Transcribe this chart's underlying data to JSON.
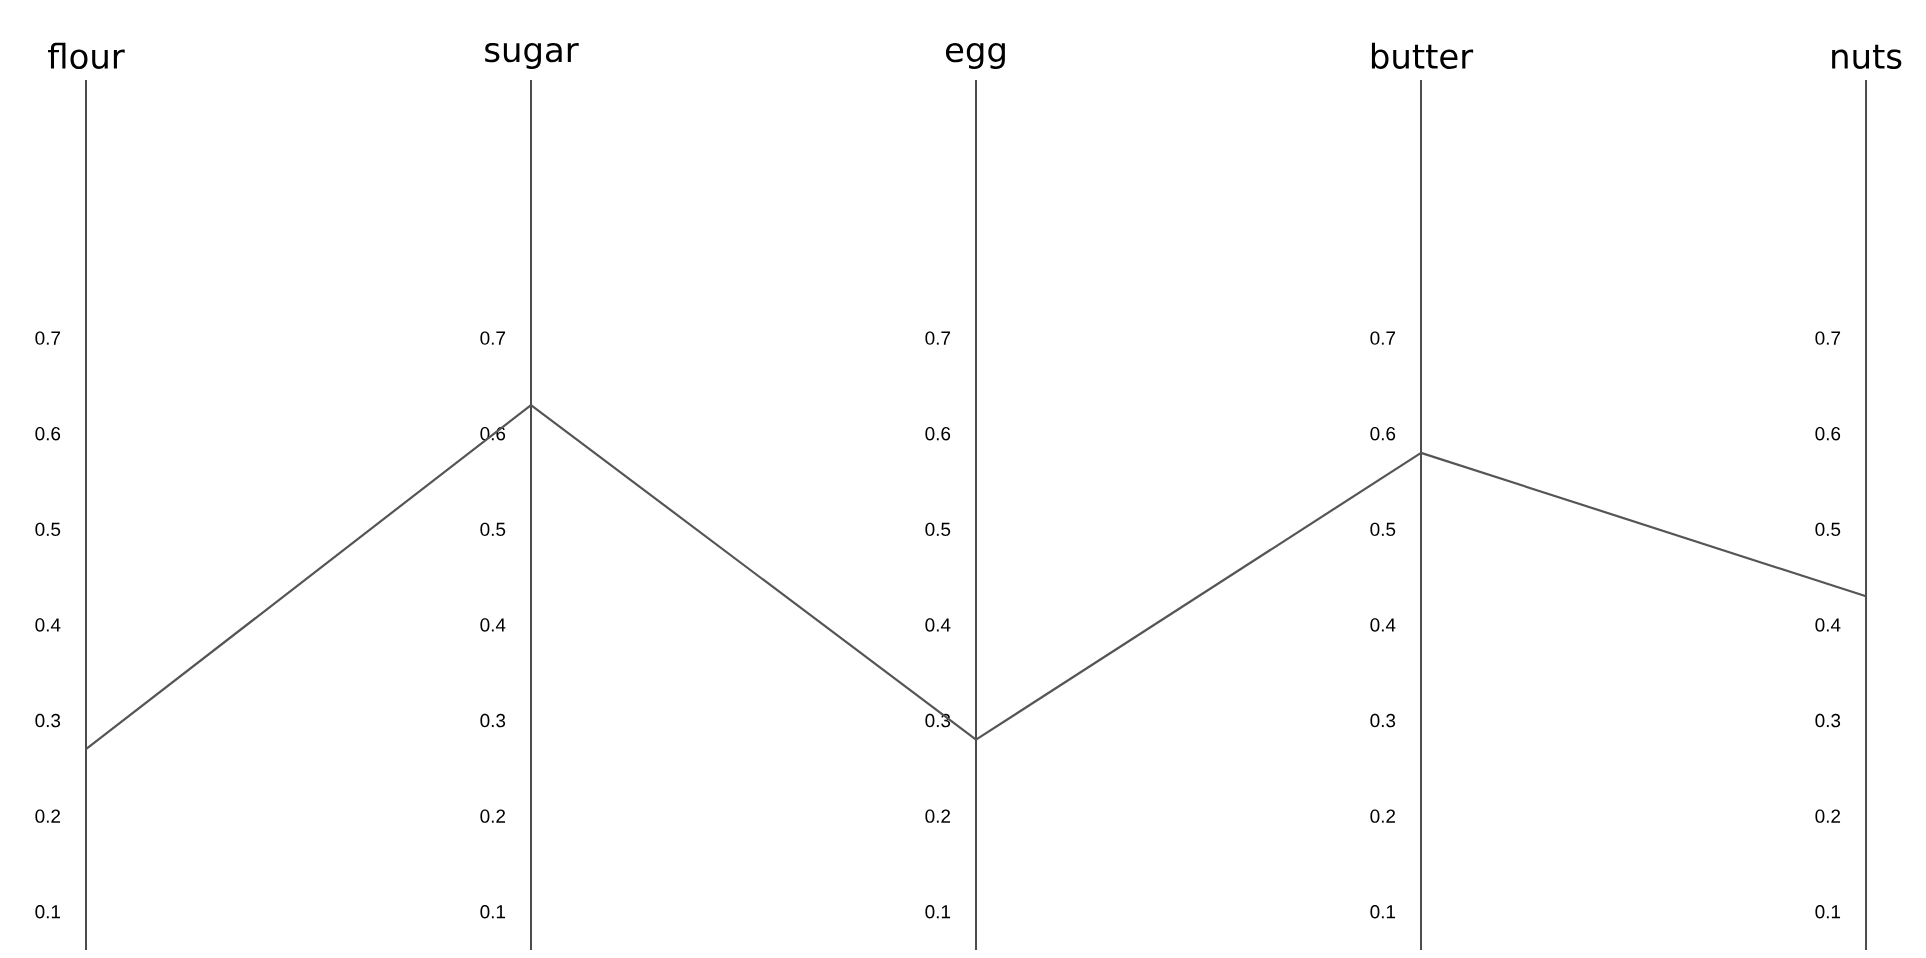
{
  "chart_data": [
    {
      "type": "line",
      "categories": [
        "flour",
        "sugar",
        "egg"
      ],
      "values": [
        0.27,
        0.63,
        0.28
      ],
      "color": "#555555",
      "grid": "x",
      "ylim": [
        0.06,
        0.97
      ],
      "yticks": [
        0.1,
        0.2,
        0.3,
        0.4,
        0.5,
        0.6,
        0.7
      ],
      "y2lim": [
        0.06,
        0.97
      ],
      "y2ticks": [
        0.1,
        0.2,
        0.3,
        0.4,
        0.5,
        0.6,
        0.7
      ],
      "y3lim": [
        0.06,
        0.97
      ],
      "y3ticks": [
        0.1,
        0.2,
        0.3,
        0.4,
        0.5,
        0.6,
        0.7
      ]
    },
    {
      "type": "line",
      "categories": [
        "butter",
        "nuts"
      ],
      "values": [
        0.58,
        0.43
      ],
      "color": "#555555",
      "grid": "x",
      "ylim": [
        0.06,
        0.97
      ],
      "yticks": [
        0.1,
        0.2,
        0.3,
        0.4,
        0.5,
        0.6,
        0.7
      ],
      "y2lim": [
        0.06,
        0.97
      ],
      "y2ticks": [
        0.1,
        0.2,
        0.3,
        0.4,
        0.5,
        0.6,
        0.7
      ]
    }
  ]
}
